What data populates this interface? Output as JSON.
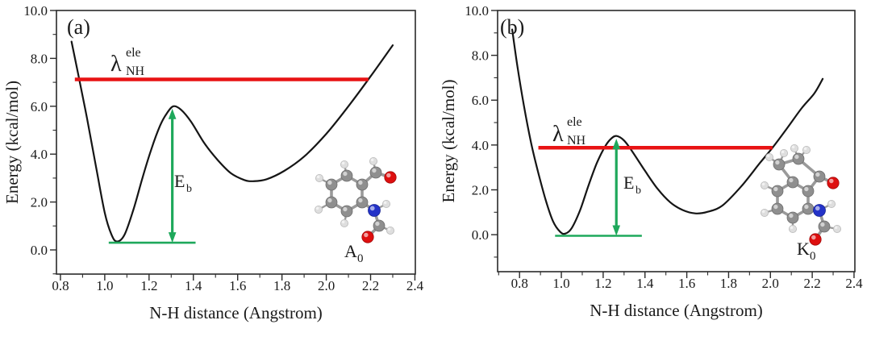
{
  "figure": {
    "background": "#ffffff",
    "description": "Dual-panel potential energy scan figure"
  },
  "colors": {
    "curve": "#151515",
    "axis": "#2a2a2a",
    "text": "#1a1a1a",
    "lambda_red": "#e81314",
    "annotation_green": "#1ea85b",
    "bond": "#9a9a9a",
    "atoms": {
      "C": "#8f8f8f",
      "H": "#dedede",
      "N": "#2433c8",
      "O": "#de0f0f"
    }
  },
  "chart_data": [
    {
      "type": "line",
      "panel_label": "(a)",
      "xlabel": "N-H distance  (Angstrom)",
      "ylabel": "Energy (kcal/mol)",
      "xlim": [
        0.782,
        2.402
      ],
      "ylim": [
        -1.01,
        10.0
      ],
      "xticks": {
        "values": [
          0.8,
          1.0,
          1.2,
          1.4,
          1.6,
          1.8,
          2.0,
          2.2,
          2.4
        ],
        "labels": [
          "0.8",
          "1.0",
          "1.2",
          "1.4",
          "1.6",
          "1.8",
          "2.0",
          "2.2",
          "2.4"
        ]
      },
      "yticks": {
        "values": [
          0,
          2,
          4,
          6,
          8,
          10
        ],
        "labels": [
          "0.0",
          "2.0",
          "4.0",
          "6.0",
          "8.0",
          "10.0"
        ]
      },
      "xminor": [
        0.9,
        1.1,
        1.3,
        1.5,
        1.7,
        1.9,
        2.1,
        2.3
      ],
      "yminor": [
        -1,
        1,
        3,
        5,
        7,
        9
      ],
      "curve": [
        [
          0.85,
          8.7
        ],
        [
          0.88,
          7.35
        ],
        [
          0.92,
          5.5
        ],
        [
          0.96,
          3.5
        ],
        [
          1.0,
          1.55
        ],
        [
          1.03,
          0.65
        ],
        [
          1.055,
          0.35
        ],
        [
          1.09,
          0.65
        ],
        [
          1.13,
          1.7
        ],
        [
          1.17,
          3.0
        ],
        [
          1.21,
          4.2
        ],
        [
          1.25,
          5.2
        ],
        [
          1.28,
          5.7
        ],
        [
          1.31,
          6.0
        ],
        [
          1.345,
          5.85
        ],
        [
          1.39,
          5.35
        ],
        [
          1.45,
          4.45
        ],
        [
          1.51,
          3.75
        ],
        [
          1.57,
          3.2
        ],
        [
          1.63,
          2.92
        ],
        [
          1.67,
          2.87
        ],
        [
          1.73,
          2.95
        ],
        [
          1.81,
          3.3
        ],
        [
          1.9,
          3.9
        ],
        [
          2.0,
          4.85
        ],
        [
          2.1,
          6.0
        ],
        [
          2.2,
          7.25
        ],
        [
          2.3,
          8.55
        ]
      ],
      "reorganization_line": {
        "energy": 7.12,
        "x_start": 0.865,
        "x_end": 2.19,
        "label": {
          "base": "λ",
          "sup": "ele",
          "sub": "NH"
        }
      },
      "barrier": {
        "arrow_x": 1.305,
        "baseline_energy": 0.3,
        "top_energy": 5.9,
        "baseline_x": [
          1.018,
          1.41
        ],
        "label": {
          "base": "E",
          "sub": "b"
        }
      },
      "molecule": {
        "label": {
          "base": "A",
          "sub": "0"
        },
        "atoms": [
          [
            "C",
            430,
            218
          ],
          [
            "C",
            449,
            229
          ],
          [
            "C",
            449,
            251
          ],
          [
            "C",
            430,
            262
          ],
          [
            "C",
            411,
            251
          ],
          [
            "C",
            411,
            229
          ],
          [
            "C",
            466,
            214
          ],
          [
            "H",
            463,
            200
          ],
          [
            "O",
            484,
            220
          ],
          [
            "N",
            464,
            261
          ],
          [
            "H",
            479,
            253
          ],
          [
            "C",
            470,
            280
          ],
          [
            "H",
            484,
            286
          ],
          [
            "O",
            456,
            294
          ],
          [
            "H",
            427,
            204
          ],
          [
            "H",
            396,
            221
          ],
          [
            "H",
            395,
            260
          ],
          [
            "H",
            427,
            277
          ]
        ],
        "bonds": [
          [
            0,
            1
          ],
          [
            1,
            2
          ],
          [
            2,
            3
          ],
          [
            3,
            4
          ],
          [
            4,
            5
          ],
          [
            5,
            0
          ],
          [
            1,
            6
          ],
          [
            6,
            7
          ],
          [
            6,
            8
          ],
          [
            2,
            9
          ],
          [
            9,
            10
          ],
          [
            9,
            11
          ],
          [
            11,
            12
          ],
          [
            11,
            13
          ],
          [
            0,
            14
          ],
          [
            5,
            15
          ],
          [
            4,
            16
          ],
          [
            3,
            17
          ]
        ]
      }
    },
    {
      "type": "line",
      "panel_label": "(b)",
      "xlabel": "N-H distance  (Angstrom)",
      "ylabel": "Energy (kcal/mol)",
      "xlim": [
        0.695,
        2.404
      ],
      "ylim": [
        -1.65,
        10.0
      ],
      "xticks": {
        "values": [
          0.8,
          1.0,
          1.2,
          1.4,
          1.6,
          1.8,
          2.0,
          2.2,
          2.4
        ],
        "labels": [
          "0.8",
          "1.0",
          "1.2",
          "1.4",
          "1.6",
          "1.8",
          "2.0",
          "2.2",
          "2.4"
        ]
      },
      "yticks": {
        "values": [
          0,
          2,
          4,
          6,
          8,
          10
        ],
        "labels": [
          "0.0",
          "2.0",
          "4.0",
          "6.0",
          "8.0",
          "10.0"
        ]
      },
      "xminor": [
        0.7,
        0.9,
        1.1,
        1.3,
        1.5,
        1.7,
        1.9,
        2.1,
        2.3
      ],
      "yminor": [
        -1,
        1,
        3,
        5,
        7,
        9
      ],
      "curve": [
        [
          0.765,
          9.15
        ],
        [
          0.79,
          7.5
        ],
        [
          0.82,
          5.8
        ],
        [
          0.855,
          4.1
        ],
        [
          0.89,
          2.75
        ],
        [
          0.925,
          1.55
        ],
        [
          0.96,
          0.6
        ],
        [
          0.995,
          0.12
        ],
        [
          1.02,
          0.05
        ],
        [
          1.05,
          0.3
        ],
        [
          1.09,
          1.1
        ],
        [
          1.13,
          2.2
        ],
        [
          1.17,
          3.2
        ],
        [
          1.21,
          3.95
        ],
        [
          1.24,
          4.3
        ],
        [
          1.265,
          4.4
        ],
        [
          1.3,
          4.2
        ],
        [
          1.34,
          3.7
        ],
        [
          1.4,
          2.85
        ],
        [
          1.46,
          2.05
        ],
        [
          1.52,
          1.45
        ],
        [
          1.58,
          1.1
        ],
        [
          1.64,
          0.95
        ],
        [
          1.7,
          1.02
        ],
        [
          1.77,
          1.3
        ],
        [
          1.86,
          2.15
        ],
        [
          1.95,
          3.2
        ],
        [
          2.01,
          3.88
        ],
        [
          2.08,
          4.75
        ],
        [
          2.15,
          5.65
        ],
        [
          2.21,
          6.3
        ],
        [
          2.25,
          6.95
        ]
      ],
      "reorganization_line": {
        "energy": 3.88,
        "x_start": 0.89,
        "x_end": 2.01,
        "label": {
          "base": "λ",
          "sup": "ele",
          "sub": "NH"
        }
      },
      "barrier": {
        "arrow_x": 1.263,
        "baseline_energy": -0.05,
        "top_energy": 4.28,
        "baseline_x": [
          0.97,
          1.385
        ],
        "label": {
          "base": "E",
          "sub": "b"
        }
      },
      "molecule": {
        "label": {
          "base": "K",
          "sub": "0"
        },
        "atoms": [
          [
            "C",
            983,
            226
          ],
          [
            "C",
            1002,
            237
          ],
          [
            "C",
            1002,
            259
          ],
          [
            "C",
            983,
            270
          ],
          [
            "C",
            964,
            259
          ],
          [
            "C",
            964,
            237
          ],
          [
            "C",
            966,
            204
          ],
          [
            "C",
            990,
            197
          ],
          [
            "C",
            1016,
            219
          ],
          [
            "O",
            1033,
            227
          ],
          [
            "N",
            1016,
            261
          ],
          [
            "H",
            1031,
            253
          ],
          [
            "C",
            1022,
            281
          ],
          [
            "H",
            1038,
            284
          ],
          [
            "O",
            1011,
            297
          ],
          [
            "H",
            954,
            195
          ],
          [
            "H",
            972,
            190
          ],
          [
            "H",
            985,
            184
          ],
          [
            "H",
            1000,
            186
          ],
          [
            "H",
            948,
            230
          ],
          [
            "H",
            948,
            264
          ],
          [
            "H",
            983,
            284
          ]
        ],
        "bonds": [
          [
            0,
            1
          ],
          [
            1,
            2
          ],
          [
            2,
            3
          ],
          [
            3,
            4
          ],
          [
            4,
            5
          ],
          [
            5,
            0
          ],
          [
            0,
            6
          ],
          [
            6,
            7
          ],
          [
            7,
            8
          ],
          [
            8,
            1
          ],
          [
            8,
            9
          ],
          [
            2,
            10
          ],
          [
            10,
            11
          ],
          [
            10,
            12
          ],
          [
            12,
            13
          ],
          [
            12,
            14
          ],
          [
            6,
            15
          ],
          [
            6,
            16
          ],
          [
            7,
            17
          ],
          [
            7,
            18
          ],
          [
            5,
            19
          ],
          [
            4,
            20
          ],
          [
            3,
            21
          ]
        ]
      }
    }
  ]
}
